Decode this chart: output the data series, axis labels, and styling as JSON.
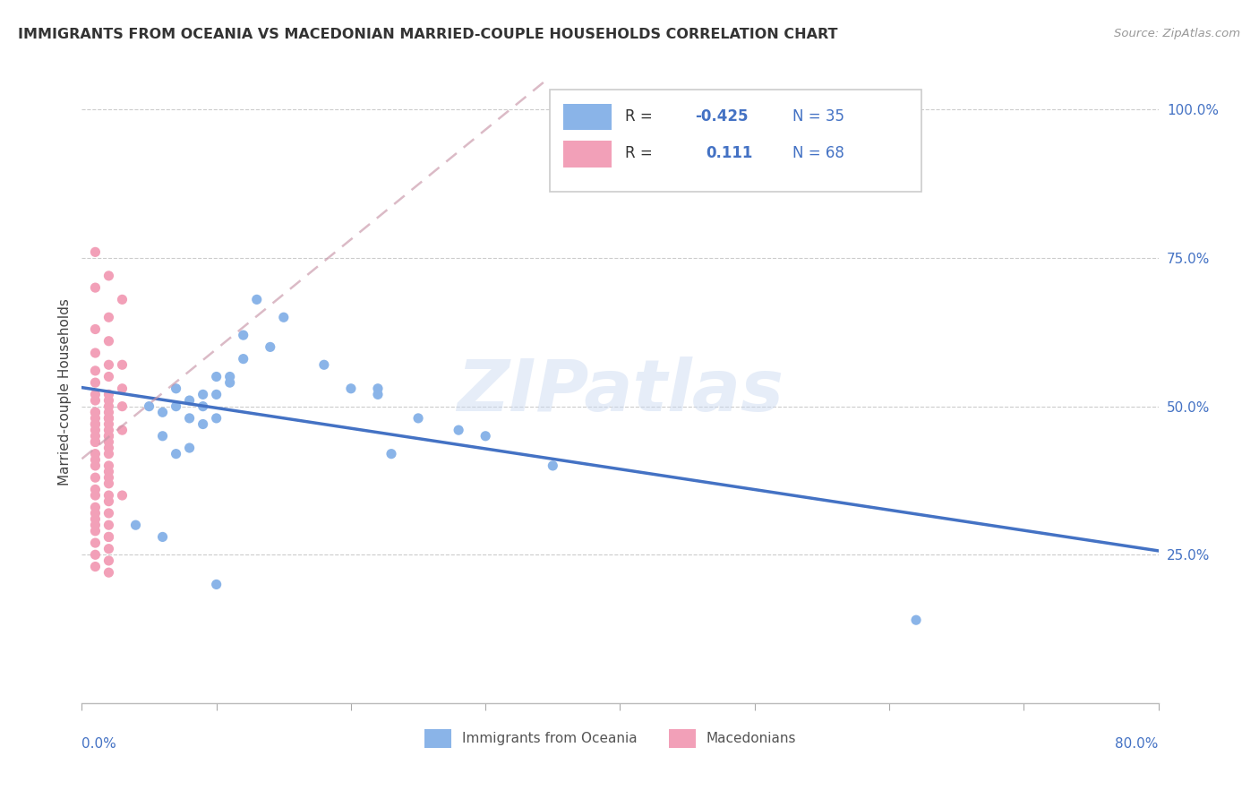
{
  "title": "IMMIGRANTS FROM OCEANIA VS MACEDONIAN MARRIED-COUPLE HOUSEHOLDS CORRELATION CHART",
  "source": "Source: ZipAtlas.com",
  "ylabel": "Married-couple Households",
  "xlim": [
    0.0,
    0.8
  ],
  "ylim": [
    0.0,
    1.05
  ],
  "ytick_vals": [
    0.25,
    0.5,
    0.75,
    1.0
  ],
  "ytick_labels": [
    "25.0%",
    "50.0%",
    "75.0%",
    "100.0%"
  ],
  "xtick_vals": [
    0.0,
    0.1,
    0.2,
    0.3,
    0.4,
    0.5,
    0.6,
    0.7,
    0.8
  ],
  "watermark": "ZIPatlas",
  "color_blue": "#8ab4e8",
  "color_pink": "#f2a0b8",
  "color_blue_line": "#4472c4",
  "color_pink_line": "#c896a8",
  "background": "#ffffff",
  "blue_x": [
    0.1,
    0.12,
    0.07,
    0.09,
    0.06,
    0.08,
    0.11,
    0.13,
    0.05,
    0.09,
    0.08,
    0.1,
    0.06,
    0.07,
    0.12,
    0.15,
    0.14,
    0.18,
    0.2,
    0.22,
    0.25,
    0.28,
    0.3,
    0.35,
    0.62,
    0.04,
    0.06,
    0.07,
    0.08,
    0.09,
    0.1,
    0.11,
    0.22,
    0.23,
    0.1
  ],
  "blue_y": [
    0.55,
    0.62,
    0.53,
    0.5,
    0.49,
    0.51,
    0.54,
    0.68,
    0.5,
    0.52,
    0.43,
    0.48,
    0.45,
    0.42,
    0.58,
    0.65,
    0.6,
    0.57,
    0.53,
    0.52,
    0.48,
    0.46,
    0.45,
    0.4,
    0.14,
    0.3,
    0.28,
    0.5,
    0.48,
    0.47,
    0.52,
    0.55,
    0.53,
    0.42,
    0.2
  ],
  "pink_x": [
    0.01,
    0.02,
    0.01,
    0.03,
    0.02,
    0.01,
    0.02,
    0.01,
    0.03,
    0.02,
    0.01,
    0.02,
    0.01,
    0.03,
    0.02,
    0.01,
    0.02,
    0.01,
    0.02,
    0.03,
    0.01,
    0.02,
    0.01,
    0.02,
    0.01,
    0.02,
    0.01,
    0.02,
    0.01,
    0.03,
    0.02,
    0.01,
    0.02,
    0.01,
    0.02,
    0.01,
    0.02,
    0.01,
    0.02,
    0.01,
    0.02,
    0.01,
    0.02,
    0.01,
    0.02,
    0.01,
    0.02,
    0.01,
    0.02,
    0.01,
    0.02,
    0.01,
    0.02,
    0.01,
    0.02,
    0.01,
    0.02,
    0.01,
    0.02,
    0.01,
    0.02,
    0.01,
    0.02,
    0.01,
    0.03,
    0.02,
    0.01,
    0.02
  ],
  "pink_y": [
    0.76,
    0.72,
    0.7,
    0.68,
    0.65,
    0.63,
    0.61,
    0.59,
    0.57,
    0.57,
    0.56,
    0.55,
    0.54,
    0.53,
    0.52,
    0.52,
    0.51,
    0.51,
    0.5,
    0.5,
    0.49,
    0.49,
    0.49,
    0.48,
    0.48,
    0.48,
    0.47,
    0.47,
    0.47,
    0.46,
    0.46,
    0.46,
    0.45,
    0.45,
    0.45,
    0.44,
    0.44,
    0.44,
    0.43,
    0.42,
    0.42,
    0.41,
    0.4,
    0.4,
    0.39,
    0.38,
    0.37,
    0.36,
    0.35,
    0.35,
    0.34,
    0.33,
    0.32,
    0.31,
    0.3,
    0.29,
    0.28,
    0.27,
    0.26,
    0.25,
    0.24,
    0.23,
    0.22,
    0.3,
    0.35,
    0.38,
    0.32,
    0.28
  ]
}
